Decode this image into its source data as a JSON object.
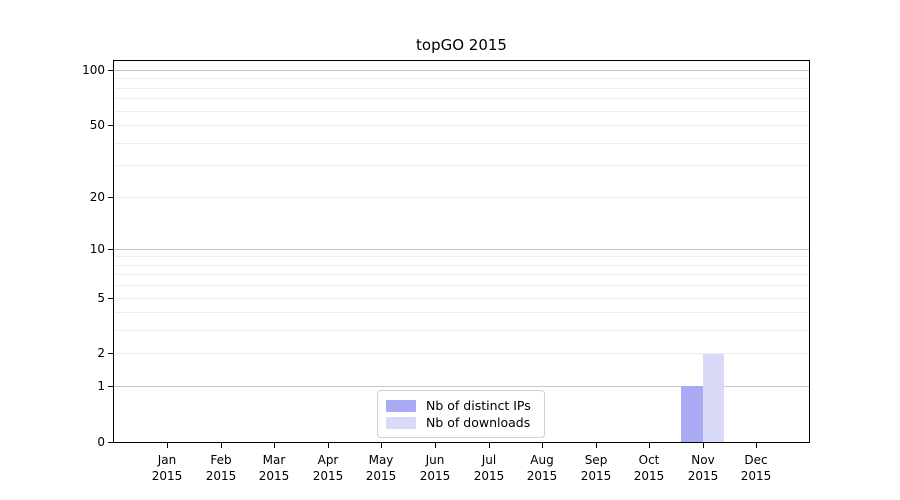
{
  "chart_data": {
    "type": "bar",
    "title": "topGO 2015",
    "categories": [
      "Jan 2015",
      "Feb 2015",
      "Mar 2015",
      "Apr 2015",
      "May 2015",
      "Jun 2015",
      "Jul 2015",
      "Aug 2015",
      "Sep 2015",
      "Oct 2015",
      "Nov 2015",
      "Dec 2015"
    ],
    "series": [
      {
        "name": "Nb of distinct IPs",
        "color": "#a9a9f4",
        "values": [
          0,
          0,
          0,
          0,
          0,
          0,
          0,
          0,
          0,
          0,
          1,
          0
        ]
      },
      {
        "name": "Nb of downloads",
        "color": "#d9d9f8",
        "values": [
          0,
          0,
          0,
          0,
          0,
          0,
          0,
          0,
          0,
          0,
          2,
          0
        ]
      }
    ],
    "yscale": "log1p",
    "ylim": [
      0,
      115
    ],
    "yticks": [
      0,
      1,
      2,
      5,
      10,
      20,
      50,
      100
    ],
    "grid": {
      "minor_values": [
        2,
        3,
        4,
        5,
        6,
        7,
        8,
        9,
        20,
        30,
        40,
        50,
        60,
        70,
        80,
        90
      ],
      "major_values": [
        1,
        10,
        100
      ],
      "minor_color": "#ededed",
      "major_color": "#c6c6c6"
    },
    "legend": {
      "position": "lower center"
    },
    "axis_color": "#000000"
  }
}
